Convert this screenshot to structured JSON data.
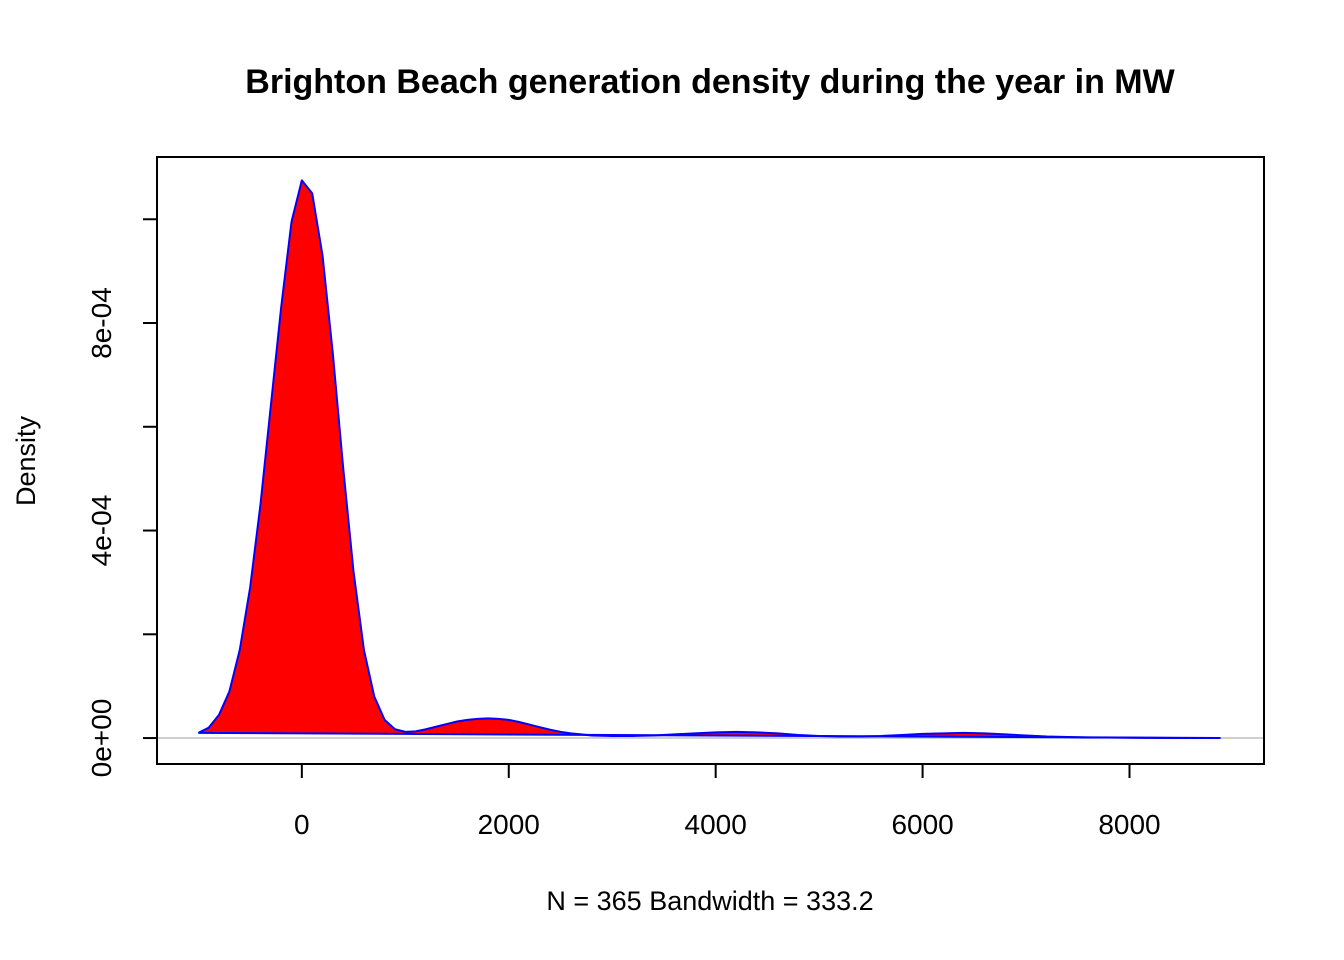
{
  "chart_data": {
    "type": "area",
    "title": "Brighton Beach generation density during the year in MW",
    "xlabel": "N = 365   Bandwidth = 333.2",
    "ylabel": "Density",
    "xlim": [
      -1400,
      9300
    ],
    "ylim": [
      -5e-05,
      0.00112
    ],
    "x_ticks": [
      0,
      2000,
      4000,
      6000,
      8000
    ],
    "x_tick_labels": [
      "0",
      "2000",
      "4000",
      "6000",
      "8000"
    ],
    "y_ticks": [
      0,
      0.0002,
      0.0004,
      0.0006,
      0.0008,
      0.001
    ],
    "y_tick_labels": [
      "0e+00",
      "",
      "4e-04",
      "",
      "8e-04",
      ""
    ],
    "grid": false,
    "legend": "none",
    "baseline": 0,
    "colors": {
      "fill": "#ff0000",
      "line": "#0000ff",
      "baseline": "#c0c0c0"
    },
    "series": [
      {
        "x": [
          -1000,
          -900,
          -800,
          -700,
          -600,
          -500,
          -400,
          -300,
          -200,
          -100,
          0,
          100,
          200,
          300,
          400,
          500,
          600,
          700,
          800,
          900,
          1000,
          1100,
          1200,
          1300,
          1400,
          1500,
          1600,
          1700,
          1800,
          1900,
          2000,
          2100,
          2200,
          2300,
          2400,
          2500,
          2600,
          2700,
          2800,
          3000,
          3200,
          3400,
          3600,
          3800,
          4000,
          4200,
          4400,
          4600,
          4800,
          5000,
          5200,
          5400,
          5600,
          5800,
          6000,
          6200,
          6400,
          6600,
          6800,
          7000,
          7200,
          7400,
          7600,
          7800,
          8000,
          8200,
          8400,
          8600,
          8800,
          8880
        ],
        "y": [
          1e-05,
          2e-05,
          4.5e-05,
          9e-05,
          0.00017,
          0.00029,
          0.00045,
          0.00064,
          0.00083,
          0.000995,
          0.001075,
          0.00105,
          0.00093,
          0.00074,
          0.00052,
          0.00032,
          0.00017,
          8e-05,
          3.5e-05,
          1.7e-05,
          1.2e-05,
          1.3e-05,
          1.7e-05,
          2.2e-05,
          2.7e-05,
          3.2e-05,
          3.5e-05,
          3.7e-05,
          3.8e-05,
          3.7e-05,
          3.5e-05,
          3.1e-05,
          2.6e-05,
          2.1e-05,
          1.6e-05,
          1.2e-05,
          9e-06,
          7e-06,
          5e-06,
          4e-06,
          4e-06,
          5e-06,
          7e-06,
          9e-06,
          1.1e-05,
          1.2e-05,
          1.1e-05,
          9e-06,
          6e-06,
          4e-06,
          3e-06,
          3e-06,
          4e-06,
          6e-06,
          8e-06,
          9e-06,
          1e-05,
          9e-06,
          7e-06,
          5e-06,
          3e-06,
          2e-06,
          1e-06,
          1e-06,
          5e-07,
          3e-07,
          2e-07,
          1e-07,
          5e-08,
          0
        ]
      }
    ]
  }
}
